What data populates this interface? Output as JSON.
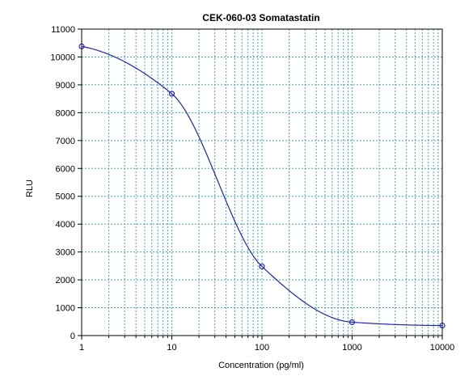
{
  "chart_data": {
    "type": "scatter",
    "title": "CEK-060-03 Somatastatin",
    "xlabel": "Concentration (pg/ml)",
    "ylabel": "RLU",
    "x_scale": "log",
    "xlim": [
      1,
      10000
    ],
    "ylim": [
      0,
      11000
    ],
    "x_ticks": [
      "1",
      "10",
      "100",
      "1000",
      "10000"
    ],
    "y_ticks": [
      "0",
      "1000",
      "2000",
      "3000",
      "4000",
      "5000",
      "6000",
      "7000",
      "8000",
      "9000",
      "10000",
      "11000"
    ],
    "grid": true,
    "series": [
      {
        "points": [
          {
            "x": 1,
            "y": 10380
          },
          {
            "x": 10,
            "y": 8680
          },
          {
            "x": 100,
            "y": 2480
          },
          {
            "x": 1000,
            "y": 480
          },
          {
            "x": 10000,
            "y": 360
          }
        ],
        "fit_curve": true
      }
    ],
    "colors": {
      "curve": "#2222bb",
      "marker": "#2222bb",
      "grid": "#3fa9b5"
    }
  }
}
